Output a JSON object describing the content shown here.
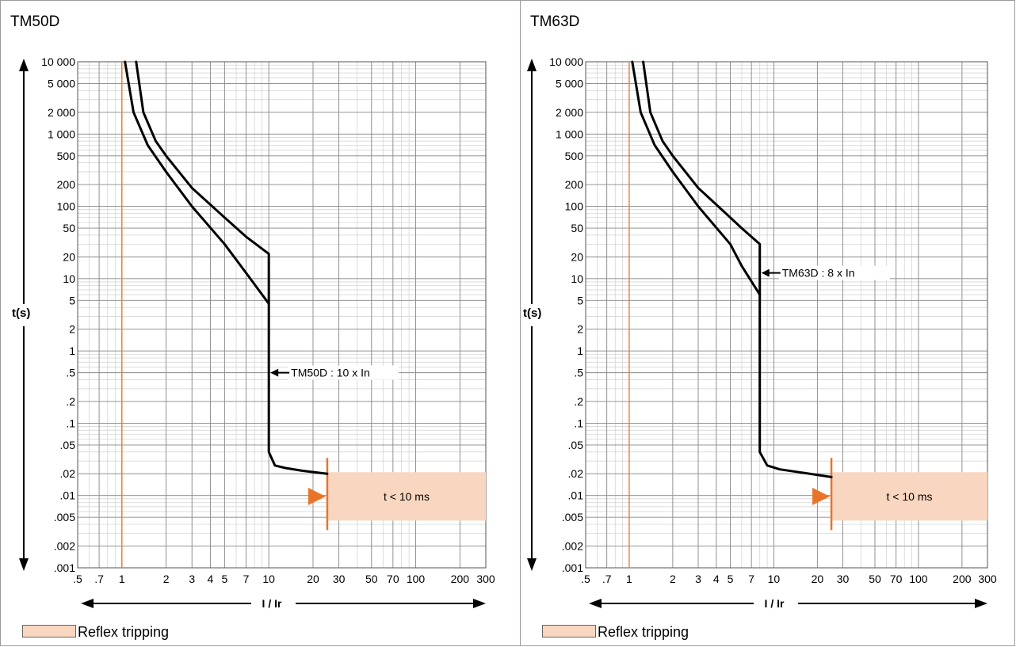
{
  "chart_data": [
    {
      "type": "line",
      "title": "TM50D",
      "xlabel": "I / Ir",
      "ylabel": "t(s)",
      "x_scale": "log",
      "y_scale": "log",
      "xlim": [
        0.5,
        300
      ],
      "ylim": [
        0.001,
        10000
      ],
      "x_ticks": [
        {
          "v": 0.5,
          "label": ".5"
        },
        {
          "v": 0.7,
          "label": ".7"
        },
        {
          "v": 1,
          "label": "1"
        },
        {
          "v": 2,
          "label": "2"
        },
        {
          "v": 3,
          "label": "3"
        },
        {
          "v": 4,
          "label": "4"
        },
        {
          "v": 5,
          "label": "5"
        },
        {
          "v": 7,
          "label": "7"
        },
        {
          "v": 10,
          "label": "10"
        },
        {
          "v": 20,
          "label": "20"
        },
        {
          "v": 30,
          "label": "30"
        },
        {
          "v": 50,
          "label": "50"
        },
        {
          "v": 70,
          "label": "70"
        },
        {
          "v": 100,
          "label": "100"
        },
        {
          "v": 200,
          "label": "200"
        },
        {
          "v": 300,
          "label": "300"
        }
      ],
      "y_ticks": [
        {
          "v": 10000,
          "label": "10 000"
        },
        {
          "v": 5000,
          "label": "5 000"
        },
        {
          "v": 2000,
          "label": "2 000"
        },
        {
          "v": 1000,
          "label": "1 000"
        },
        {
          "v": 500,
          "label": "500"
        },
        {
          "v": 200,
          "label": "200"
        },
        {
          "v": 100,
          "label": "100"
        },
        {
          "v": 50,
          "label": "50"
        },
        {
          "v": 20,
          "label": "20"
        },
        {
          "v": 10,
          "label": "10"
        },
        {
          "v": 5,
          "label": "5"
        },
        {
          "v": 2,
          "label": "2"
        },
        {
          "v": 1,
          "label": "1"
        },
        {
          "v": 0.5,
          "label": ".5"
        },
        {
          "v": 0.2,
          "label": ".2"
        },
        {
          "v": 0.1,
          "label": ".1"
        },
        {
          "v": 0.05,
          "label": ".05"
        },
        {
          "v": 0.02,
          "label": ".02"
        },
        {
          "v": 0.01,
          "label": ".01"
        },
        {
          "v": 0.005,
          "label": ".005"
        },
        {
          "v": 0.002,
          "label": ".002"
        },
        {
          "v": 0.001,
          "label": ".001"
        }
      ],
      "reference_line": {
        "x": 1,
        "color": "#e8742a"
      },
      "series": [
        {
          "values": [
            [
              1.05,
              10000
            ],
            [
              1.2,
              2000
            ],
            [
              1.5,
              700
            ],
            [
              2,
              300
            ],
            [
              3,
              100
            ],
            [
              5,
              30
            ],
            [
              7,
              12
            ],
            [
              10,
              4.5
            ],
            [
              10,
              0.04
            ],
            [
              11,
              0.026
            ],
            [
              13,
              0.024
            ],
            [
              17,
              0.022
            ],
            [
              25,
              0.02
            ]
          ]
        },
        {
          "values": [
            [
              1.25,
              10000
            ],
            [
              1.4,
              2000
            ],
            [
              1.7,
              800
            ],
            [
              2,
              500
            ],
            [
              3,
              180
            ],
            [
              5,
              70
            ],
            [
              7,
              38
            ],
            [
              10,
              22
            ],
            [
              10,
              4.5
            ]
          ]
        }
      ],
      "annotations": [
        {
          "text": "TM50D : 10 x In",
          "x": 10,
          "y": 0.5
        }
      ],
      "reflex_zone": {
        "x_start": 25,
        "x_end": 300,
        "y_min": 0.0045,
        "y_max": 0.021,
        "label": "t < 10 ms",
        "color": "#f9d6bf",
        "marker_color": "#e8742a"
      }
    },
    {
      "type": "line",
      "title": "TM63D",
      "xlabel": "I / Ir",
      "ylabel": "t(s)",
      "x_scale": "log",
      "y_scale": "log",
      "xlim": [
        0.5,
        300
      ],
      "ylim": [
        0.001,
        10000
      ],
      "x_ticks": [
        {
          "v": 0.5,
          "label": ".5"
        },
        {
          "v": 0.7,
          "label": ".7"
        },
        {
          "v": 1,
          "label": "1"
        },
        {
          "v": 2,
          "label": "2"
        },
        {
          "v": 3,
          "label": "3"
        },
        {
          "v": 4,
          "label": "4"
        },
        {
          "v": 5,
          "label": "5"
        },
        {
          "v": 7,
          "label": "7"
        },
        {
          "v": 10,
          "label": "10"
        },
        {
          "v": 20,
          "label": "20"
        },
        {
          "v": 30,
          "label": "30"
        },
        {
          "v": 50,
          "label": "50"
        },
        {
          "v": 70,
          "label": "70"
        },
        {
          "v": 100,
          "label": "100"
        },
        {
          "v": 200,
          "label": "200"
        },
        {
          "v": 300,
          "label": "300"
        }
      ],
      "y_ticks": [
        {
          "v": 10000,
          "label": "10 000"
        },
        {
          "v": 5000,
          "label": "5 000"
        },
        {
          "v": 2000,
          "label": "2 000"
        },
        {
          "v": 1000,
          "label": "1 000"
        },
        {
          "v": 500,
          "label": "500"
        },
        {
          "v": 200,
          "label": "200"
        },
        {
          "v": 100,
          "label": "100"
        },
        {
          "v": 50,
          "label": "50"
        },
        {
          "v": 20,
          "label": "20"
        },
        {
          "v": 10,
          "label": "10"
        },
        {
          "v": 5,
          "label": "5"
        },
        {
          "v": 2,
          "label": "2"
        },
        {
          "v": 1,
          "label": "1"
        },
        {
          "v": 0.5,
          "label": ".5"
        },
        {
          "v": 0.2,
          "label": ".2"
        },
        {
          "v": 0.1,
          "label": ".1"
        },
        {
          "v": 0.05,
          "label": ".05"
        },
        {
          "v": 0.02,
          "label": ".02"
        },
        {
          "v": 0.01,
          "label": ".01"
        },
        {
          "v": 0.005,
          "label": ".005"
        },
        {
          "v": 0.002,
          "label": ".002"
        },
        {
          "v": 0.001,
          "label": ".001"
        }
      ],
      "reference_line": {
        "x": 1,
        "color": "#e8742a"
      },
      "series": [
        {
          "values": [
            [
              1.05,
              10000
            ],
            [
              1.2,
              2000
            ],
            [
              1.5,
              700
            ],
            [
              2,
              300
            ],
            [
              3,
              100
            ],
            [
              5,
              30
            ],
            [
              6,
              15
            ],
            [
              8,
              6
            ],
            [
              8,
              0.04
            ],
            [
              9,
              0.026
            ],
            [
              11,
              0.023
            ],
            [
              15,
              0.021
            ],
            [
              25,
              0.018
            ]
          ]
        },
        {
          "values": [
            [
              1.25,
              10000
            ],
            [
              1.4,
              2000
            ],
            [
              1.7,
              800
            ],
            [
              2,
              500
            ],
            [
              3,
              180
            ],
            [
              5,
              70
            ],
            [
              6,
              50
            ],
            [
              8,
              30
            ],
            [
              8,
              6
            ]
          ]
        }
      ],
      "annotations": [
        {
          "text": "TM63D : 8 x In",
          "x": 8,
          "y": 12
        }
      ],
      "reflex_zone": {
        "x_start": 25,
        "x_end": 300,
        "y_min": 0.0045,
        "y_max": 0.021,
        "label": "t < 10 ms",
        "color": "#f9d6bf",
        "marker_color": "#e8742a"
      }
    }
  ],
  "legend": {
    "label": "Reflex tripping",
    "color": "#f9d6bf"
  }
}
